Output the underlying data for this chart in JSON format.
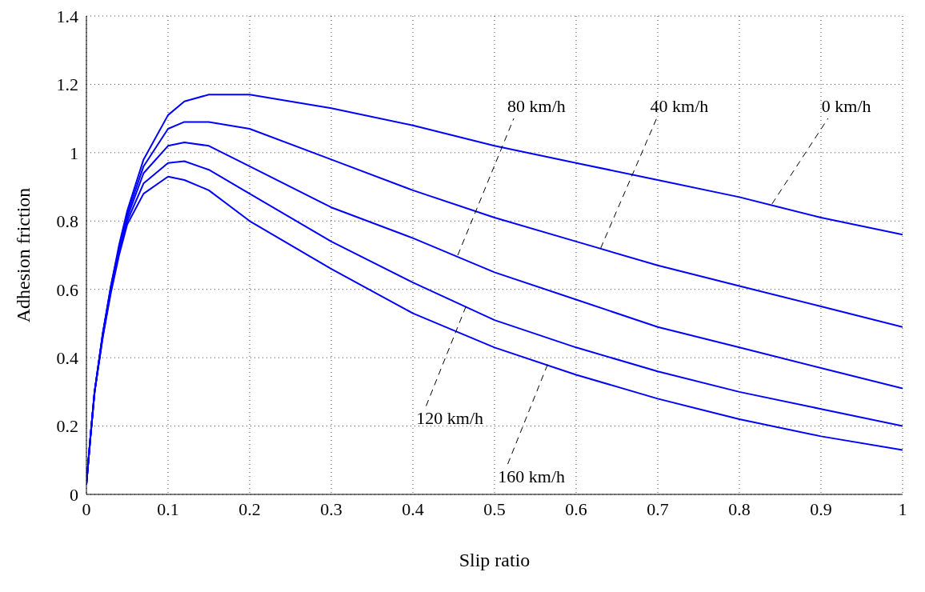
{
  "chart_data": {
    "type": "line",
    "xlabel": "Slip ratio",
    "ylabel": "Adhesion friction",
    "x": [
      0,
      0.005,
      0.01,
      0.02,
      0.03,
      0.04,
      0.05,
      0.07,
      0.1,
      0.12,
      0.15,
      0.2,
      0.3,
      0.4,
      0.5,
      0.6,
      0.7,
      0.8,
      0.9,
      1
    ],
    "series": [
      {
        "color": "#0000ff",
        "values": [
          0.03,
          0.17,
          0.3,
          0.47,
          0.61,
          0.73,
          0.83,
          0.98,
          1.11,
          1.15,
          1.17,
          1.17,
          1.13,
          1.08,
          1.02,
          0.97,
          0.92,
          0.87,
          0.81,
          0.76
        ]
      },
      {
        "color": "#0000ff",
        "values": [
          0.03,
          0.17,
          0.3,
          0.47,
          0.61,
          0.72,
          0.82,
          0.96,
          1.07,
          1.09,
          1.09,
          1.07,
          0.98,
          0.89,
          0.81,
          0.74,
          0.67,
          0.61,
          0.55,
          0.49
        ]
      },
      {
        "color": "#0000ff",
        "values": [
          0.03,
          0.17,
          0.3,
          0.47,
          0.6,
          0.72,
          0.81,
          0.94,
          1.02,
          1.03,
          1.02,
          0.96,
          0.84,
          0.75,
          0.65,
          0.57,
          0.49,
          0.43,
          0.37,
          0.31
        ]
      },
      {
        "color": "#0000ff",
        "values": [
          0.03,
          0.17,
          0.3,
          0.46,
          0.6,
          0.71,
          0.8,
          0.91,
          0.97,
          0.975,
          0.95,
          0.88,
          0.74,
          0.62,
          0.51,
          0.43,
          0.36,
          0.3,
          0.25,
          0.2
        ]
      },
      {
        "color": "#0000ff",
        "values": [
          0.03,
          0.17,
          0.3,
          0.46,
          0.59,
          0.7,
          0.79,
          0.88,
          0.93,
          0.92,
          0.89,
          0.8,
          0.66,
          0.53,
          0.43,
          0.35,
          0.28,
          0.22,
          0.17,
          0.13
        ]
      }
    ],
    "annotations": [
      {
        "text": "80 km/h",
        "x": 0.455,
        "y": 0.7
      },
      {
        "text": "40 km/h",
        "x": 0.63,
        "y": 0.72
      },
      {
        "text": "0 km/h",
        "x": 0.84,
        "y": 0.85
      },
      {
        "text": "120 km/h",
        "x": 0.465,
        "y": 0.55
      },
      {
        "text": "160 km/h",
        "x": 0.565,
        "y": 0.38
      }
    ],
    "xlim": [
      0,
      1
    ],
    "xticks": [
      0,
      0.1,
      0.2,
      0.3,
      0.4,
      0.5,
      0.6,
      0.7,
      0.8,
      0.9,
      1
    ],
    "ylim": [
      0,
      1.4
    ],
    "yticks": [
      0,
      0.2,
      0.4,
      0.6,
      0.8,
      1,
      1.2,
      1.4
    ],
    "grid": true,
    "marker": "none",
    "line_style": "solid"
  }
}
